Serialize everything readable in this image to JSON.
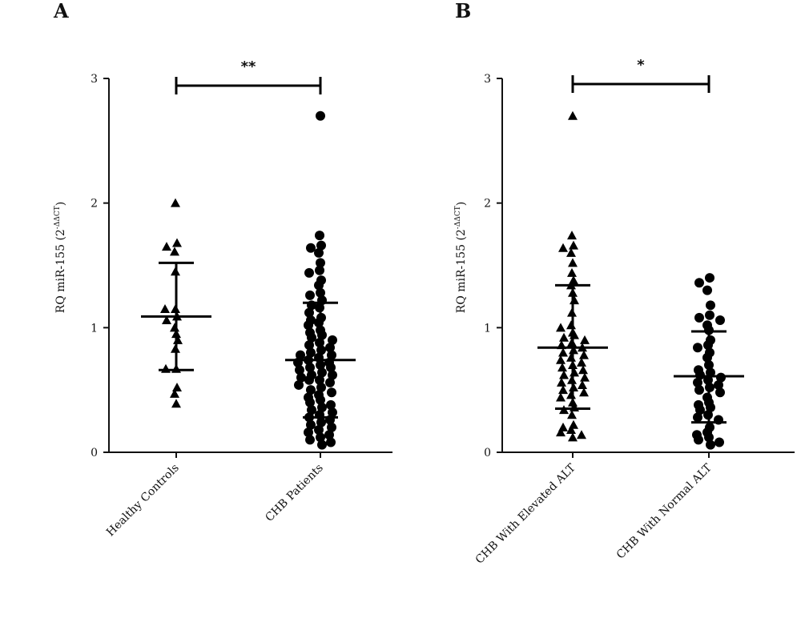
{
  "colors": {
    "marker": "#000000",
    "axis": "#111111",
    "background": "#ffffff"
  },
  "chart_data": [
    {
      "type": "scatter",
      "panel": "A",
      "ylabel": "RQ miR-155 (2",
      "ylabel_sup": "-ΔΔCT",
      "ylabel_close": ")",
      "ylim": [
        0,
        3
      ],
      "yticks": [
        "0",
        "1",
        "2",
        "3"
      ],
      "categories": [
        "Healthy Controls",
        "CHB Patients"
      ],
      "significance": "**",
      "series": [
        {
          "category": "Healthy Controls",
          "marker": "triangle",
          "mean": 1.09,
          "sd_low": 0.66,
          "sd_high": 1.52,
          "values": [
            2.0,
            1.68,
            1.61,
            1.65,
            1.45,
            1.15,
            1.15,
            1.09,
            1.06,
            1.0,
            0.95,
            0.9,
            0.83,
            0.67,
            0.67,
            0.52,
            0.47,
            0.39
          ]
        },
        {
          "category": "CHB Patients",
          "marker": "circle",
          "mean": 0.74,
          "sd_low": 0.28,
          "sd_high": 1.2,
          "values": [
            2.7,
            1.74,
            1.66,
            1.64,
            1.6,
            1.52,
            1.46,
            1.44,
            1.38,
            1.34,
            1.28,
            1.26,
            1.22,
            1.18,
            1.16,
            1.12,
            1.08,
            1.06,
            1.04,
            1.02,
            0.98,
            0.96,
            0.94,
            0.92,
            0.9,
            0.88,
            0.86,
            0.84,
            0.82,
            0.8,
            0.78,
            0.78,
            0.76,
            0.74,
            0.72,
            0.72,
            0.7,
            0.68,
            0.68,
            0.66,
            0.64,
            0.62,
            0.62,
            0.6,
            0.58,
            0.58,
            0.56,
            0.54,
            0.52,
            0.5,
            0.48,
            0.46,
            0.44,
            0.42,
            0.4,
            0.38,
            0.36,
            0.34,
            0.32,
            0.3,
            0.28,
            0.26,
            0.24,
            0.22,
            0.2,
            0.18,
            0.16,
            0.14,
            0.12,
            0.1,
            0.08,
            0.06
          ]
        }
      ]
    },
    {
      "type": "scatter",
      "panel": "B",
      "ylabel": "RQ miR-155 (2",
      "ylabel_sup": "-ΔΔCT",
      "ylabel_close": ")",
      "ylim": [
        0,
        3
      ],
      "yticks": [
        "0",
        "1",
        "2",
        "3"
      ],
      "categories": [
        "CHB With Elevated ALT",
        "CHB With Normal ALT"
      ],
      "significance": "*",
      "series": [
        {
          "category": "CHB With Elevated ALT",
          "marker": "triangle",
          "mean": 0.84,
          "sd_low": 0.35,
          "sd_high": 1.34,
          "values": [
            2.7,
            1.74,
            1.66,
            1.64,
            1.6,
            1.52,
            1.44,
            1.38,
            1.34,
            1.28,
            1.22,
            1.12,
            1.02,
            1.0,
            0.96,
            0.94,
            0.92,
            0.9,
            0.88,
            0.86,
            0.84,
            0.82,
            0.8,
            0.78,
            0.76,
            0.74,
            0.72,
            0.7,
            0.68,
            0.66,
            0.64,
            0.62,
            0.6,
            0.58,
            0.56,
            0.54,
            0.52,
            0.5,
            0.48,
            0.46,
            0.44,
            0.4,
            0.36,
            0.34,
            0.3,
            0.22,
            0.2,
            0.18,
            0.16,
            0.14,
            0.12
          ]
        },
        {
          "category": "CHB With Normal ALT",
          "marker": "circle",
          "mean": 0.61,
          "sd_low": 0.24,
          "sd_high": 0.97,
          "values": [
            1.4,
            1.36,
            1.3,
            1.18,
            1.1,
            1.08,
            1.06,
            1.02,
            0.98,
            0.9,
            0.86,
            0.84,
            0.8,
            0.76,
            0.7,
            0.66,
            0.64,
            0.62,
            0.6,
            0.58,
            0.56,
            0.54,
            0.52,
            0.5,
            0.48,
            0.44,
            0.4,
            0.38,
            0.36,
            0.34,
            0.3,
            0.28,
            0.26,
            0.2,
            0.16,
            0.14,
            0.12,
            0.1,
            0.08,
            0.06
          ]
        }
      ]
    }
  ]
}
